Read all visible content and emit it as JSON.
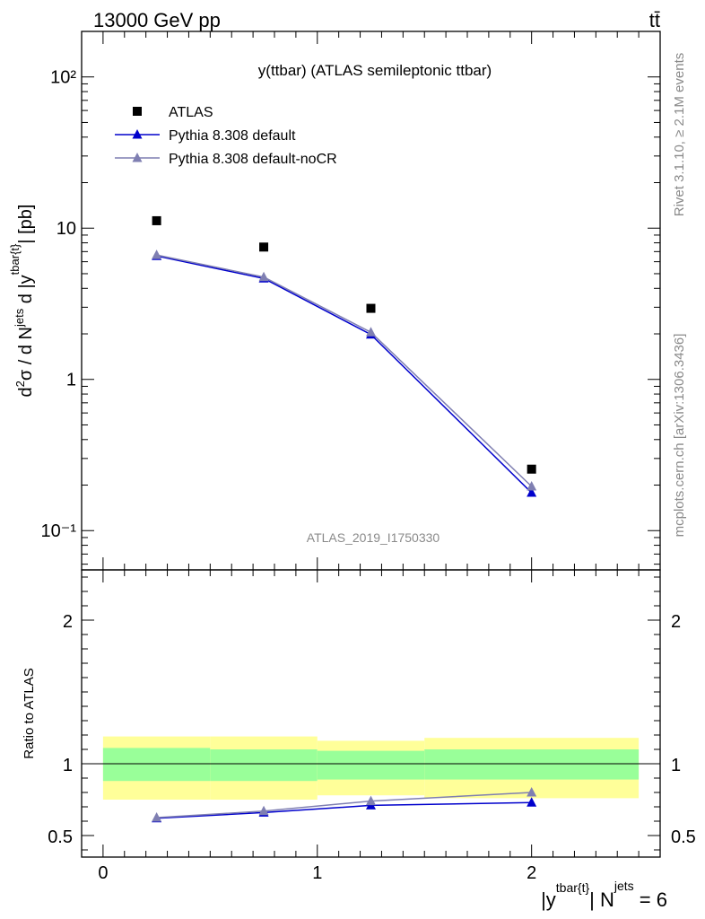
{
  "header": {
    "left": "13000 GeV pp",
    "right": "tt̄"
  },
  "side": {
    "rivet": "Rivet 3.1.10, ≥ 2.1M events",
    "mcplots": "mcplots.cern.ch [arXiv:1306.3436]"
  },
  "chart_data": [
    {
      "type": "scatter",
      "title": "y(ttbar) (ATLAS semileptonic ttbar)",
      "watermark": "ATLAS_2019_I1750330",
      "ylabel": "d²σ / d N^jets d |y^tbar{t}| [pb]",
      "yscale": "log",
      "ylim": [
        0.055,
        200
      ],
      "yticks": [
        {
          "value": 0.1,
          "label": "10⁻¹"
        },
        {
          "value": 1,
          "label": "1"
        },
        {
          "value": 10,
          "label": "10"
        },
        {
          "value": 100,
          "label": "10²"
        }
      ],
      "xlim": [
        -0.1,
        2.6
      ],
      "legend": [
        {
          "name": "ATLAS",
          "marker": "square",
          "color": "#000000"
        },
        {
          "name": "Pythia 8.308 default",
          "marker": "triangle",
          "color": "#0000cc"
        },
        {
          "name": "Pythia 8.308 default-noCR",
          "marker": "triangle",
          "color": "#7f7fb2"
        }
      ],
      "series": [
        {
          "name": "ATLAS",
          "x": [
            0.25,
            0.75,
            1.25,
            2.0
          ],
          "y": [
            11.2,
            7.5,
            2.95,
            0.255
          ]
        },
        {
          "name": "Pythia 8.308 default",
          "x": [
            0.25,
            0.75,
            1.25,
            2.0
          ],
          "y": [
            6.55,
            4.65,
            1.98,
            0.178
          ]
        },
        {
          "name": "Pythia 8.308 default-noCR",
          "x": [
            0.25,
            0.75,
            1.25,
            2.0
          ],
          "y": [
            6.65,
            4.75,
            2.05,
            0.196
          ]
        }
      ]
    },
    {
      "type": "line",
      "ylabel": "Ratio to ATLAS",
      "xlabel": "|y^tbar{t}| N^jets = 6",
      "ylim": [
        0.35,
        2.35
      ],
      "xlim": [
        -0.1,
        2.6
      ],
      "yticks": [
        {
          "value": 0.5,
          "label": "0.5"
        },
        {
          "value": 1,
          "label": "1"
        },
        {
          "value": 2,
          "label": "2"
        }
      ],
      "xticks": [
        {
          "value": 0,
          "label": "0"
        },
        {
          "value": 1,
          "label": "1"
        },
        {
          "value": 2,
          "label": "2"
        }
      ],
      "bands": [
        {
          "x0": 0,
          "x1": 0.5,
          "inner": [
            0.88,
            1.11
          ],
          "outer": [
            0.75,
            1.19
          ]
        },
        {
          "x0": 0.5,
          "x1": 1.0,
          "inner": [
            0.88,
            1.1
          ],
          "outer": [
            0.75,
            1.19
          ]
        },
        {
          "x0": 1.0,
          "x1": 1.5,
          "inner": [
            0.89,
            1.09
          ],
          "outer": [
            0.78,
            1.16
          ]
        },
        {
          "x0": 1.5,
          "x1": 2.5,
          "inner": [
            0.89,
            1.1
          ],
          "outer": [
            0.76,
            1.18
          ]
        }
      ],
      "series": [
        {
          "name": "Pythia 8.308 default",
          "x": [
            0.25,
            0.75,
            1.25,
            2.0
          ],
          "y": [
            0.62,
            0.66,
            0.71,
            0.73
          ],
          "err": [
            0.01,
            0.01,
            0.012,
            0.02
          ]
        },
        {
          "name": "Pythia 8.308 default-noCR",
          "x": [
            0.25,
            0.75,
            1.25,
            2.0
          ],
          "y": [
            0.625,
            0.67,
            0.74,
            0.8
          ],
          "err": [
            0.01,
            0.01,
            0.012,
            0.022
          ]
        }
      ]
    }
  ]
}
